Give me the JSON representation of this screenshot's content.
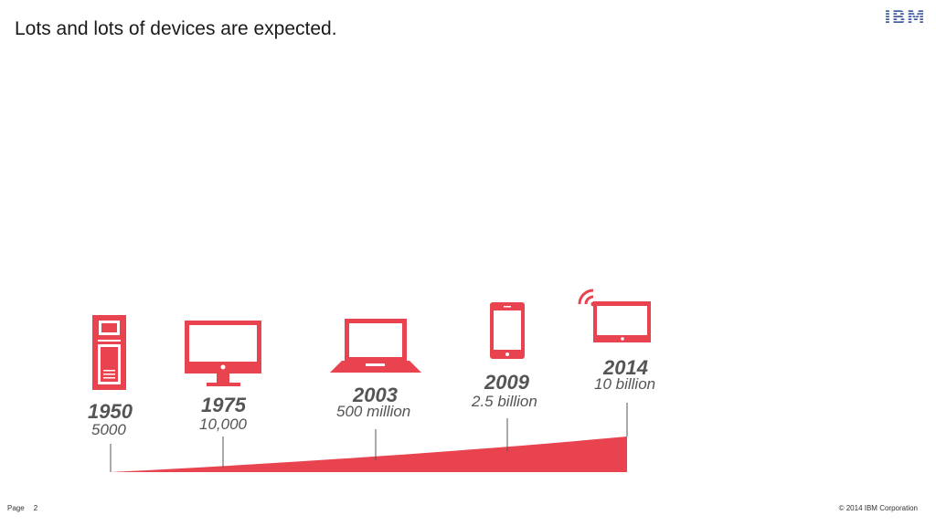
{
  "slide": {
    "title": "Lots and lots of devices are expected.",
    "logo_text": "IBM"
  },
  "timeline": [
    {
      "year": "1950",
      "count": "5000",
      "icon": "mainframe-icon"
    },
    {
      "year": "1975",
      "count": "10,000",
      "icon": "desktop-monitor-icon"
    },
    {
      "year": "2003",
      "count": "500 million",
      "icon": "laptop-icon"
    },
    {
      "year": "2009",
      "count": "2.5 billion",
      "icon": "smartphone-icon"
    },
    {
      "year": "2014",
      "count": "10 billion",
      "icon": "tablet-wifi-icon"
    }
  ],
  "footer": {
    "page_label": "Page",
    "page_number": "2",
    "copyright": "© 2014 IBM Corporation"
  },
  "colors": {
    "accent": "#e8434f",
    "text": "#555555",
    "logo": "#3d5a9e"
  }
}
